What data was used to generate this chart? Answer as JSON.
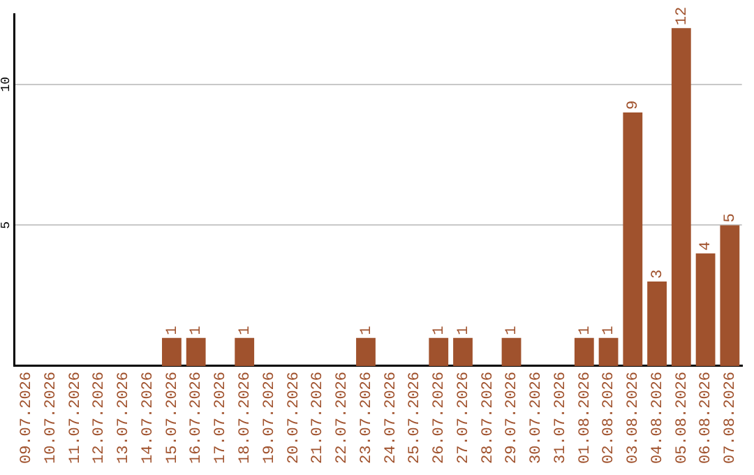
{
  "chart_data": {
    "type": "bar",
    "categories": [
      "09.07.2026",
      "10.07.2026",
      "11.07.2026",
      "12.07.2026",
      "13.07.2026",
      "14.07.2026",
      "15.07.2026",
      "16.07.2026",
      "17.07.2026",
      "18.07.2026",
      "19.07.2026",
      "20.07.2026",
      "21.07.2026",
      "22.07.2026",
      "23.07.2026",
      "24.07.2026",
      "25.07.2026",
      "26.07.2026",
      "27.07.2026",
      "28.07.2026",
      "29.07.2026",
      "30.07.2026",
      "31.07.2026",
      "01.08.2026",
      "02.08.2026",
      "03.08.2026",
      "04.08.2026",
      "05.08.2026",
      "06.08.2026",
      "07.08.2026"
    ],
    "values": [
      0,
      0,
      0,
      0,
      0,
      0,
      1,
      1,
      0,
      1,
      0,
      0,
      0,
      0,
      1,
      0,
      0,
      1,
      1,
      0,
      1,
      0,
      0,
      1,
      1,
      9,
      3,
      12,
      4,
      5
    ],
    "value_labels": [
      null,
      null,
      null,
      null,
      null,
      null,
      "1",
      "1",
      null,
      "1",
      null,
      null,
      null,
      null,
      "1",
      null,
      null,
      "1",
      "1",
      null,
      "1",
      null,
      null,
      "1",
      "1",
      "9",
      "3",
      "12",
      "4",
      "5"
    ],
    "color": "#a0522d",
    "ylim": [
      0,
      12.5
    ],
    "yticks": [
      5,
      10
    ],
    "grid": "y",
    "legend": false
  }
}
